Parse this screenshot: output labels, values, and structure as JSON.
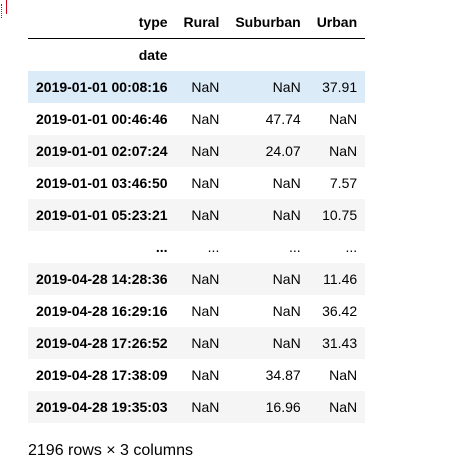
{
  "table": {
    "columns_name": "type",
    "index_name": "date",
    "columns": [
      "Rural",
      "Suburban",
      "Urban"
    ],
    "rows": [
      {
        "index": "2019-01-01 00:08:16",
        "values": [
          "NaN",
          "NaN",
          "37.91"
        ]
      },
      {
        "index": "2019-01-01 00:46:46",
        "values": [
          "NaN",
          "47.74",
          "NaN"
        ]
      },
      {
        "index": "2019-01-01 02:07:24",
        "values": [
          "NaN",
          "24.07",
          "NaN"
        ]
      },
      {
        "index": "2019-01-01 03:46:50",
        "values": [
          "NaN",
          "NaN",
          "7.57"
        ]
      },
      {
        "index": "2019-01-01 05:23:21",
        "values": [
          "NaN",
          "NaN",
          "10.75"
        ]
      },
      {
        "index": "...",
        "values": [
          "...",
          "...",
          "..."
        ]
      },
      {
        "index": "2019-04-28 14:28:36",
        "values": [
          "NaN",
          "NaN",
          "11.46"
        ]
      },
      {
        "index": "2019-04-28 16:29:16",
        "values": [
          "NaN",
          "NaN",
          "36.42"
        ]
      },
      {
        "index": "2019-04-28 17:26:52",
        "values": [
          "NaN",
          "NaN",
          "31.43"
        ]
      },
      {
        "index": "2019-04-28 17:38:09",
        "values": [
          "NaN",
          "34.87",
          "NaN"
        ]
      },
      {
        "index": "2019-04-28 19:35:03",
        "values": [
          "NaN",
          "16.96",
          "NaN"
        ]
      }
    ]
  },
  "shape_note": "2196 rows × 3 columns",
  "colors": {
    "striped_row": "#f5f5f5",
    "hover_row": "#dcebf8",
    "marker": "#d0021b"
  }
}
